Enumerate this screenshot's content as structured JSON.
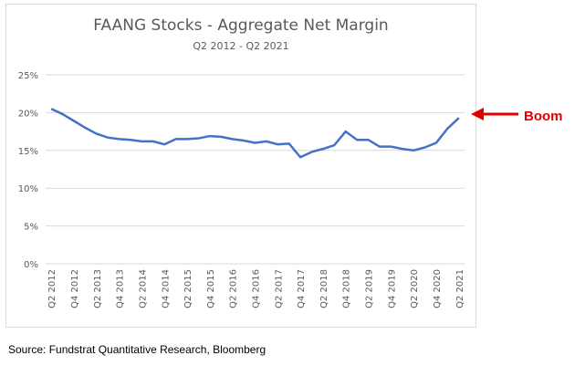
{
  "chart_data": {
    "type": "line",
    "title": "FAANG Stocks - Aggregate Net Margin",
    "subtitle": "Q2 2012 - Q2 2021",
    "xlabel": "",
    "ylabel": "",
    "ylim": [
      0,
      25
    ],
    "yticks": [
      "0%",
      "5%",
      "10%",
      "15%",
      "20%",
      "25%"
    ],
    "ytick_values": [
      0,
      5,
      10,
      15,
      20,
      25
    ],
    "grid": "horizontal",
    "x_labels": [
      "Q2 2012",
      "Q4 2012",
      "Q2 2013",
      "Q4 2013",
      "Q2 2014",
      "Q4 2014",
      "Q2 2015",
      "Q4 2015",
      "Q2 2016",
      "Q4 2016",
      "Q2 2017",
      "Q4 2017",
      "Q2 2018",
      "Q4 2018",
      "Q2 2019",
      "Q4 2019",
      "Q2 2020",
      "Q4 2020",
      "Q2 2021"
    ],
    "series": [
      {
        "name": "Aggregate Net Margin (%)",
        "color": "#4472c4",
        "values": [
          20.5,
          19.8,
          18.9,
          18.0,
          17.2,
          16.7,
          16.5,
          16.4,
          16.2,
          16.2,
          15.8,
          16.5,
          16.5,
          16.6,
          16.9,
          16.8,
          16.5,
          16.3,
          16.0,
          16.2,
          15.8,
          15.9,
          14.1,
          14.8,
          15.2,
          15.7,
          17.5,
          16.4,
          16.4,
          15.5,
          15.5,
          15.2,
          15.0,
          15.4,
          16.0,
          17.9,
          19.3
        ]
      }
    ],
    "annotation": {
      "text": "Boom",
      "color": "#e00000"
    }
  },
  "source": "Source: Fundstrat Quantitative Research, Bloomberg"
}
